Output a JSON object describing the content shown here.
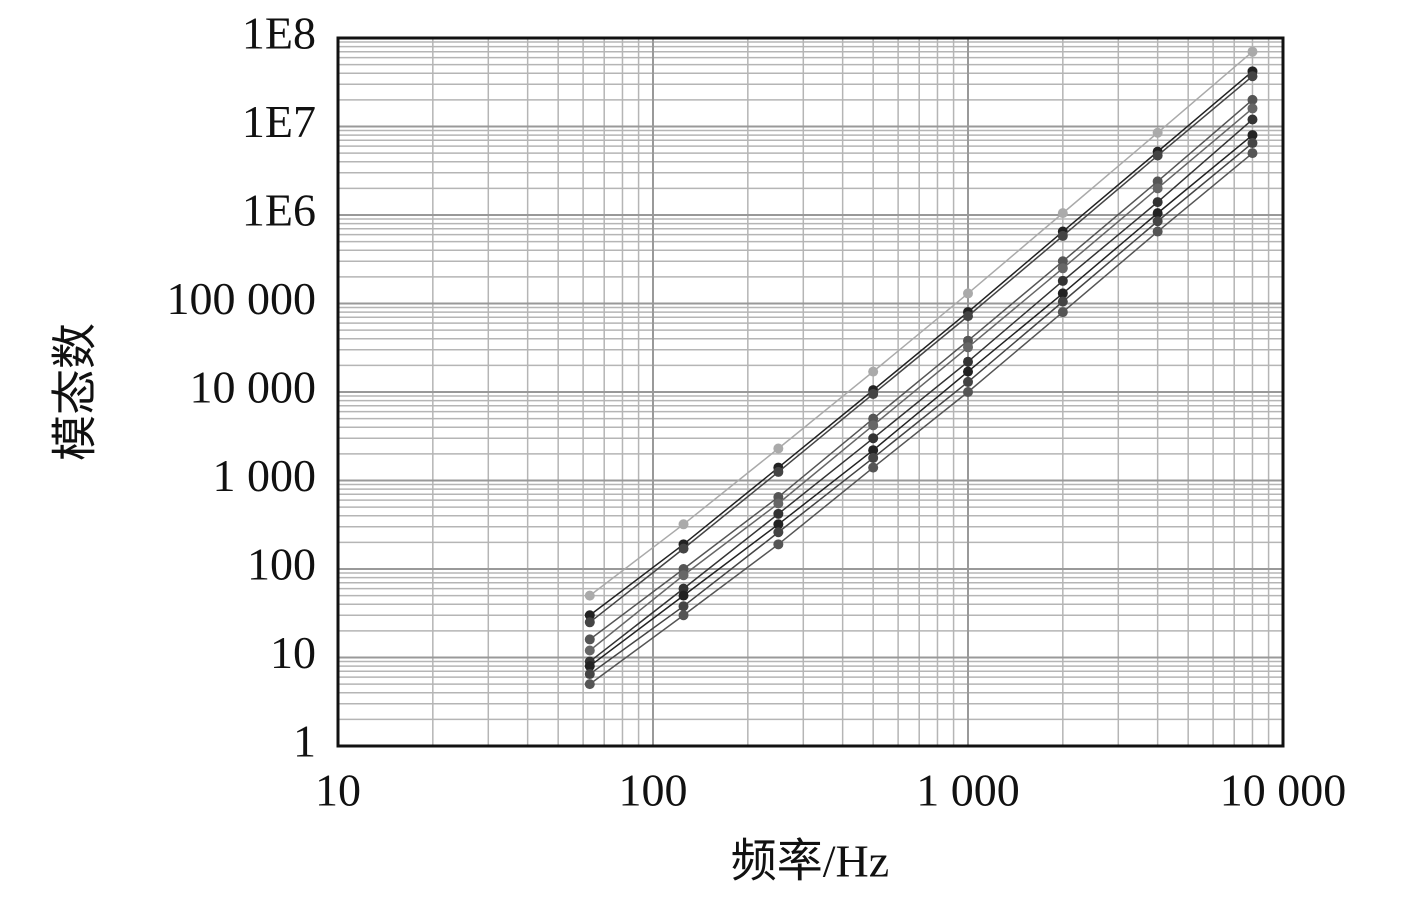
{
  "chart_data": {
    "type": "line",
    "x_label": "频率/Hz",
    "y_label": "模态数",
    "x": [
      63,
      125,
      250,
      500,
      1000,
      2000,
      4000,
      8000
    ],
    "series": [
      {
        "color": "#aaaaaa",
        "values": [
          50,
          320,
          2300,
          17000,
          130000,
          1050000,
          8500000,
          70000000
        ]
      },
      {
        "color": "#222222",
        "values": [
          30,
          190,
          1400,
          10500,
          80000,
          650000,
          5200000,
          42000000
        ]
      },
      {
        "color": "#444444",
        "values": [
          25,
          170,
          1250,
          9500,
          72000,
          580000,
          4700000,
          37000000
        ]
      },
      {
        "color": "#555555",
        "values": [
          16,
          100,
          650,
          5000,
          38000,
          300000,
          2400000,
          20000000
        ]
      },
      {
        "color": "#666666",
        "values": [
          12,
          85,
          550,
          4200,
          32000,
          250000,
          2000000,
          16000000
        ]
      },
      {
        "color": "#333333",
        "values": [
          9,
          60,
          420,
          3000,
          22000,
          180000,
          1400000,
          12000000
        ]
      },
      {
        "color": "#222222",
        "values": [
          8,
          50,
          320,
          2200,
          17000,
          130000,
          1050000,
          8000000
        ]
      },
      {
        "color": "#444444",
        "values": [
          6.5,
          38,
          260,
          1800,
          13000,
          105000,
          850000,
          6500000
        ]
      },
      {
        "color": "#555555",
        "values": [
          5,
          30,
          190,
          1400,
          10000,
          80000,
          650000,
          5000000
        ]
      }
    ],
    "xlog": true,
    "ylog": true,
    "xlim": [
      10,
      10000
    ],
    "ylim": [
      1,
      100000000
    ],
    "xticks": [
      10,
      100,
      {
        "value": 1000,
        "label": "1 000"
      },
      {
        "value": 10000,
        "label": "10 000"
      }
    ],
    "yticks": [
      1,
      10,
      100,
      {
        "value": 1000,
        "label": "1 000"
      },
      {
        "value": 10000,
        "label": "10 000"
      },
      {
        "value": 100000,
        "label": "100 000"
      },
      {
        "value": 1000000,
        "label": "1E6"
      },
      {
        "value": 10000000,
        "label": "1E7"
      },
      {
        "value": 100000000,
        "label": "1E8"
      }
    ],
    "grid": true,
    "minor_grid": true
  }
}
